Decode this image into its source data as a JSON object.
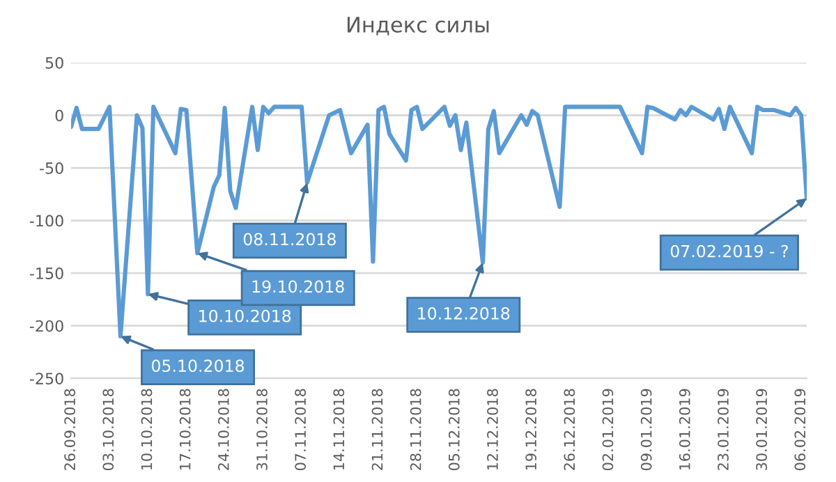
{
  "chart_data": {
    "type": "line",
    "title": "Индекс силы",
    "x": [
      "2018-09-26",
      "2018-09-27",
      "2018-09-28",
      "2018-10-01",
      "2018-10-03",
      "2018-10-05",
      "2018-10-08",
      "2018-10-09",
      "2018-10-10",
      "2018-10-11",
      "2018-10-15",
      "2018-10-16",
      "2018-10-17",
      "2018-10-19",
      "2018-10-22",
      "2018-10-23",
      "2018-10-24",
      "2018-10-25",
      "2018-10-26",
      "2018-10-29",
      "2018-10-30",
      "2018-10-31",
      "2018-11-01",
      "2018-11-02",
      "2018-11-07",
      "2018-11-08",
      "2018-11-12",
      "2018-11-14",
      "2018-11-16",
      "2018-11-19",
      "2018-11-20",
      "2018-11-21",
      "2018-11-22",
      "2018-11-23",
      "2018-11-26",
      "2018-11-27",
      "2018-11-28",
      "2018-11-29",
      "2018-12-03",
      "2018-12-04",
      "2018-12-05",
      "2018-12-06",
      "2018-12-07",
      "2018-12-10",
      "2018-12-11",
      "2018-12-12",
      "2018-12-13",
      "2018-12-17",
      "2018-12-18",
      "2018-12-19",
      "2018-12-20",
      "2018-12-24",
      "2018-12-25",
      "2019-01-04",
      "2019-01-08",
      "2019-01-09",
      "2019-01-10",
      "2019-01-14",
      "2019-01-15",
      "2019-01-16",
      "2019-01-17",
      "2019-01-21",
      "2019-01-22",
      "2019-01-23",
      "2019-01-24",
      "2019-01-28",
      "2019-01-29",
      "2019-01-30",
      "2019-02-01",
      "2019-02-04",
      "2019-02-05",
      "2019-02-06",
      "2019-02-07"
    ],
    "series": [
      {
        "color": "#5b9bd5",
        "values": [
          -11,
          7,
          -13,
          -13,
          8,
          -210,
          0,
          -12,
          -170,
          8,
          -36,
          6,
          5,
          -131,
          -68,
          -57,
          7,
          -72,
          -88,
          8,
          -33,
          8,
          2,
          8,
          8,
          -64,
          0,
          5,
          -36,
          -9,
          -139,
          5,
          8,
          -18,
          -43,
          5,
          8,
          -13,
          8,
          -10,
          0,
          -33,
          -7,
          -140,
          -13,
          4,
          -36,
          0,
          -9,
          4,
          0,
          -87,
          8,
          8,
          -36,
          8,
          7,
          -4,
          5,
          0,
          8,
          -4,
          6,
          -13,
          8,
          -36,
          8,
          5,
          5,
          0,
          7,
          0,
          -79
        ]
      }
    ],
    "ylim": [
      -250,
      50
    ],
    "yticks": [
      -250,
      -200,
      -150,
      -100,
      -50,
      0,
      50
    ],
    "xlim": [
      "2018-09-26",
      "2019-02-07"
    ],
    "xticks": [
      {
        "value": "2018-09-26",
        "label": "26.09.2018"
      },
      {
        "value": "2018-10-03",
        "label": "03.10.2018"
      },
      {
        "value": "2018-10-10",
        "label": "10.10.2018"
      },
      {
        "value": "2018-10-17",
        "label": "17.10.2018"
      },
      {
        "value": "2018-10-24",
        "label": "24.10.2018"
      },
      {
        "value": "2018-10-31",
        "label": "31.10.2018"
      },
      {
        "value": "2018-11-07",
        "label": "07.11.2018"
      },
      {
        "value": "2018-11-14",
        "label": "14.11.2018"
      },
      {
        "value": "2018-11-21",
        "label": "21.11.2018"
      },
      {
        "value": "2018-11-28",
        "label": "28.11.2018"
      },
      {
        "value": "2018-12-05",
        "label": "05.12.2018"
      },
      {
        "value": "2018-12-12",
        "label": "12.12.2018"
      },
      {
        "value": "2018-12-19",
        "label": "19.12.2018"
      },
      {
        "value": "2018-12-26",
        "label": "26.12.2018"
      },
      {
        "value": "2019-01-02",
        "label": "02.01.2019"
      },
      {
        "value": "2019-01-09",
        "label": "09.01.2019"
      },
      {
        "value": "2019-01-16",
        "label": "16.01.2019"
      },
      {
        "value": "2019-01-23",
        "label": "23.01.2019"
      },
      {
        "value": "2019-01-30",
        "label": "30.01.2019"
      },
      {
        "value": "2019-02-06",
        "label": "06.02.2019"
      }
    ],
    "grid": "y",
    "legend": false,
    "annotations": [
      {
        "text": "05.10.2018",
        "x": "2018-10-05",
        "y": -210
      },
      {
        "text": "10.10.2018",
        "x": "2018-10-10",
        "y": -170
      },
      {
        "text": "19.10.2018",
        "x": "2018-10-19",
        "y": -131
      },
      {
        "text": "08.11.2018",
        "x": "2018-11-08",
        "y": -64
      },
      {
        "text": "10.12.2018",
        "x": "2018-12-10",
        "y": -140
      },
      {
        "text": "07.02.2019 - ?",
        "x": "2019-02-07",
        "y": -79
      }
    ]
  }
}
